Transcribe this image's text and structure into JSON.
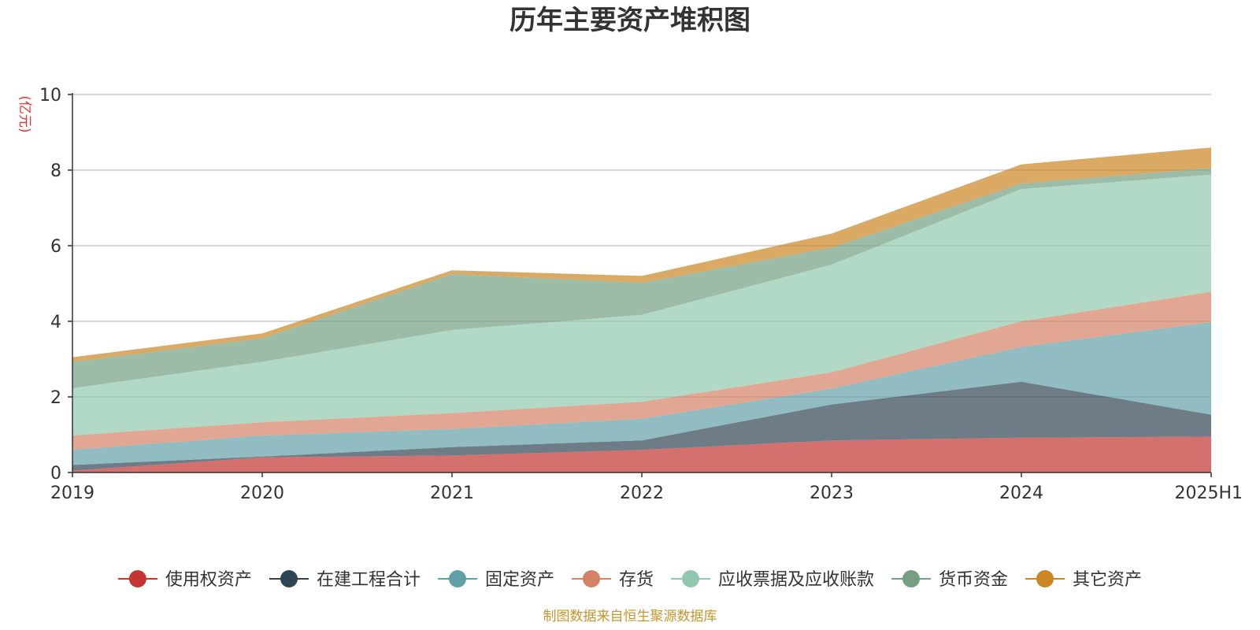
{
  "chart_data": {
    "type": "area",
    "stacked": true,
    "title": "历年主要资产堆积图",
    "ylabel": "(亿元)",
    "xlabel": "",
    "categories": [
      "2019",
      "2020",
      "2021",
      "2022",
      "2023",
      "2024",
      "2025H1"
    ],
    "ylim": [
      0,
      10
    ],
    "yticks": [
      0,
      2,
      4,
      6,
      8,
      10
    ],
    "grid": true,
    "legend_position": "bottom",
    "series": [
      {
        "name": "使用权资产",
        "color": "#c23531",
        "values": [
          0.05,
          0.4,
          0.45,
          0.6,
          0.85,
          0.92,
          0.95
        ]
      },
      {
        "name": "在建工程合计",
        "color": "#2f4554",
        "values": [
          0.15,
          0.02,
          0.22,
          0.25,
          0.95,
          1.48,
          0.58
        ]
      },
      {
        "name": "固定资产",
        "color": "#61a0a8",
        "values": [
          0.4,
          0.56,
          0.48,
          0.57,
          0.42,
          0.92,
          2.45
        ]
      },
      {
        "name": "存货",
        "color": "#d48265",
        "values": [
          0.38,
          0.35,
          0.42,
          0.45,
          0.43,
          0.68,
          0.8
        ]
      },
      {
        "name": "应收票据及应收账款",
        "color": "#91c7ae",
        "values": [
          1.25,
          1.6,
          2.2,
          2.3,
          2.85,
          3.5,
          3.1
        ]
      },
      {
        "name": "货币资金",
        "color": "#749f83",
        "values": [
          0.7,
          0.62,
          1.48,
          0.85,
          0.45,
          0.15,
          0.17
        ]
      },
      {
        "name": "其它资产",
        "color": "#ca8622",
        "values": [
          0.12,
          0.13,
          0.1,
          0.18,
          0.37,
          0.5,
          0.55
        ]
      }
    ]
  },
  "footer": {
    "source": "制图数据来自恒生聚源数据库"
  }
}
